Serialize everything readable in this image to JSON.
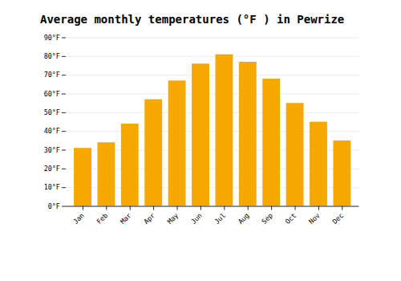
{
  "chart_data": {
    "type": "bar",
    "title": "Average monthly temperatures (°F ) in Pewrize",
    "categories": [
      "Jan",
      "Feb",
      "Mar",
      "Apr",
      "May",
      "Jun",
      "Jul",
      "Aug",
      "Sep",
      "Oct",
      "Nov",
      "Dec"
    ],
    "values": [
      31,
      34,
      44,
      57,
      67,
      76,
      81,
      77,
      68,
      55,
      45,
      35
    ],
    "color": "#F5A800",
    "ylim": [
      0,
      90
    ],
    "yticks": [
      {
        "value": 0,
        "label": "0°F"
      },
      {
        "value": 10,
        "label": "10°F"
      },
      {
        "value": 20,
        "label": "20°F"
      },
      {
        "value": 30,
        "label": "30°F"
      },
      {
        "value": 40,
        "label": "40°F"
      },
      {
        "value": 50,
        "label": "50°F"
      },
      {
        "value": 60,
        "label": "60°F"
      },
      {
        "value": 70,
        "label": "70°F"
      },
      {
        "value": 80,
        "label": "80°F"
      },
      {
        "value": 90,
        "label": "90°F"
      }
    ],
    "grid": true
  }
}
